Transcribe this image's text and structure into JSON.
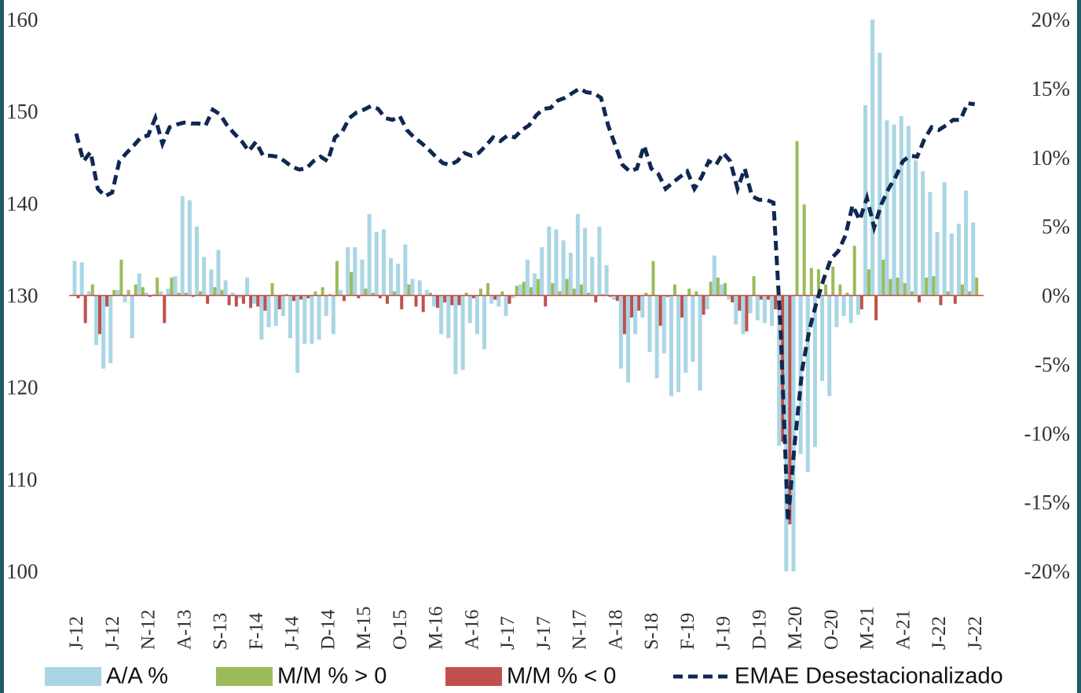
{
  "chart_data": {
    "type": "bar",
    "categories": [
      "J-12",
      null,
      null,
      null,
      null,
      "J-12",
      null,
      null,
      null,
      null,
      "N-12",
      null,
      null,
      null,
      null,
      "A-13",
      null,
      null,
      null,
      null,
      "S-13",
      null,
      null,
      null,
      null,
      "F-14",
      null,
      null,
      null,
      null,
      "J-14",
      null,
      null,
      null,
      null,
      "D-14",
      null,
      null,
      null,
      null,
      "M-15",
      null,
      null,
      null,
      null,
      "O-15",
      null,
      null,
      null,
      null,
      "M-16",
      null,
      null,
      null,
      null,
      "A-16",
      null,
      null,
      null,
      null,
      "J-17",
      null,
      null,
      null,
      null,
      "J-17",
      null,
      null,
      null,
      null,
      "N-17",
      null,
      null,
      null,
      null,
      "A-18",
      null,
      null,
      null,
      null,
      "S-18",
      null,
      null,
      null,
      null,
      "F-19",
      null,
      null,
      null,
      null,
      "J-19",
      null,
      null,
      null,
      null,
      "D-19",
      null,
      null,
      null,
      null,
      "M-20",
      null,
      null,
      null,
      null,
      "O-20",
      null,
      null,
      null,
      null,
      "M-21",
      null,
      null,
      null,
      null,
      "A-21",
      null,
      null,
      null,
      null,
      "J-22",
      null,
      null,
      null,
      null,
      "J-22"
    ],
    "series": [
      {
        "name": "A/A %",
        "color": "#a9d6e5",
        "axis": "y2",
        "values": [
          2.5,
          2.4,
          0.3,
          -3.6,
          -5.3,
          -4.9,
          0.4,
          -0.5,
          -3.1,
          1.6,
          0.2,
          0.1,
          0.3,
          0.5,
          1.4,
          7.2,
          6.9,
          5.0,
          2.8,
          1.9,
          3.3,
          1.1,
          0.2,
          -0.2,
          1.3,
          -0.6,
          -3.2,
          -2.3,
          -2.2,
          -1.5,
          -3.1,
          -5.6,
          -3.5,
          -3.5,
          -3.2,
          -1.5,
          -2.8,
          0.4,
          3.5,
          3.5,
          2.6,
          5.9,
          4.6,
          4.8,
          2.7,
          2.3,
          3.7,
          1.2,
          1.1,
          0.4,
          -0.8,
          -2.8,
          -3.1,
          -5.7,
          -5.4,
          -2.0,
          -2.8,
          -3.9,
          -0.6,
          -0.8,
          -1.5,
          -0.2,
          0.8,
          2.6,
          1.6,
          3.5,
          5.0,
          4.8,
          4.0,
          3.1,
          5.9,
          4.9,
          2.8,
          5.0,
          2.2,
          -0.3,
          -5.3,
          -6.3,
          -2.8,
          -1.6,
          -4.1,
          -6.0,
          -4.2,
          -7.3,
          -7.0,
          -5.6,
          -4.8,
          -6.9,
          -1.0,
          2.9,
          0.8,
          -0.3,
          -2.1,
          -2.8,
          -1.3,
          -1.8,
          -2.0,
          -2.2,
          -10.9,
          -20,
          -20,
          -11.5,
          -12.8,
          -11.0,
          -6.2,
          -7.3,
          -2.3,
          -1.5,
          -2.0,
          -1.4,
          13.8,
          20,
          17.6,
          12.7,
          12.4,
          13.0,
          12.3,
          9.8,
          9.0,
          7.5,
          4.6,
          8.2,
          4.5,
          5.2,
          7.6,
          5.3
        ]
      },
      {
        "name": "M/M % > 0",
        "color": "#9bbb59",
        "axis": "y2",
        "values": [
          null,
          null,
          0.8,
          null,
          null,
          0.4,
          2.6,
          0.4,
          0.8,
          0.6,
          null,
          1.3,
          null,
          1.3,
          0.2,
          0.2,
          null,
          0.3,
          null,
          0.6,
          0.4,
          null,
          null,
          null,
          null,
          null,
          null,
          0.9,
          null,
          0.1,
          null,
          null,
          null,
          0.3,
          0.6,
          0.1,
          2.5,
          null,
          1.7,
          null,
          0.5,
          0.2,
          null,
          null,
          0.3,
          null,
          0.8,
          null,
          null,
          0.2,
          null,
          null,
          null,
          null,
          0.2,
          null,
          0.5,
          0.9,
          null,
          0.3,
          null,
          0.7,
          1.0,
          0.6,
          1.2,
          null,
          0.9,
          0.3,
          1.2,
          0.5,
          0.8,
          0.2,
          null,
          0.1,
          null,
          null,
          null,
          null,
          null,
          0.2,
          2.5,
          null,
          null,
          0.8,
          null,
          0.5,
          0.3,
          null,
          1.0,
          1.3,
          0.9,
          null,
          null,
          null,
          1.4,
          null,
          null,
          null,
          null,
          null,
          11.2,
          6.6,
          2.0,
          1.9,
          0.8,
          2.1,
          0.8,
          0.2,
          3.6,
          null,
          1.9,
          null,
          2.6,
          1.2,
          1.3,
          0.9,
          0.3,
          null,
          1.3,
          1.4,
          null,
          0.3,
          null,
          0.8,
          0.3,
          1.3
        ]
      },
      {
        "name": "M/M % < 0",
        "color": "#c0504d",
        "axis": "y2",
        "values": [
          -0.2,
          -2.0,
          null,
          -2.8,
          -0.8,
          null,
          null,
          null,
          null,
          null,
          -0.1,
          null,
          -2.0,
          null,
          null,
          null,
          -0.1,
          null,
          -0.6,
          null,
          null,
          -0.7,
          -0.8,
          -0.6,
          -0.9,
          -0.8,
          -1.1,
          null,
          -1.0,
          null,
          -0.4,
          -0.3,
          -0.2,
          null,
          null,
          null,
          null,
          -0.4,
          null,
          -0.2,
          null,
          null,
          -0.2,
          -0.6,
          null,
          -1.0,
          null,
          -0.8,
          -1.2,
          null,
          -0.9,
          -0.5,
          -0.7,
          -0.7,
          null,
          -0.2,
          null,
          null,
          -0.3,
          null,
          -0.6,
          null,
          null,
          null,
          null,
          -0.8,
          null,
          null,
          null,
          null,
          null,
          null,
          -0.5,
          null,
          -0.1,
          -0.4,
          -2.8,
          -1.6,
          -1.1,
          null,
          null,
          -2.2,
          -0.1,
          null,
          -1.6,
          null,
          null,
          -1.4,
          null,
          null,
          null,
          -0.5,
          -1.1,
          -2.6,
          null,
          -0.3,
          -0.3,
          -1.0,
          -10.6,
          -16.6,
          null,
          null,
          null,
          null,
          null,
          null,
          null,
          null,
          null,
          -1.0,
          null,
          -1.8,
          null,
          null,
          null,
          null,
          null,
          -0.5,
          null,
          null,
          -0.7,
          null,
          -0.6,
          null,
          null,
          null
        ]
      },
      {
        "name": "EMAE Desestacionalizado",
        "color": "#0f2852",
        "type": "line",
        "line_style": "dashed",
        "values": [
          147.6,
          144.6,
          145.6,
          141.6,
          140.8,
          141.2,
          144.6,
          145.5,
          146.3,
          147.2,
          147.4,
          149.3,
          146.5,
          148.3,
          148.6,
          148.8,
          148.7,
          148.7,
          148.5,
          150.2,
          149.7,
          148.5,
          147.6,
          146.8,
          145.7,
          146.7,
          145.2,
          145.2,
          145.1,
          144.6,
          144.0,
          143.7,
          143.8,
          144.6,
          145.1,
          144.6,
          147.2,
          147.8,
          149.3,
          149.9,
          150.2,
          150.6,
          150.3,
          149.3,
          149.1,
          149.5,
          148.0,
          147.2,
          146.6,
          145.9,
          145.1,
          144.4,
          144.2,
          144.6,
          145.5,
          145.2,
          145.5,
          146.3,
          147.2,
          146.8,
          147.4,
          147.2,
          148.0,
          148.5,
          149.6,
          150.3,
          150.4,
          151.2,
          151.5,
          152.0,
          152.5,
          152.1,
          152.0,
          151.5,
          148.5,
          146.3,
          144.2,
          143.5,
          143.8,
          146.3,
          143.8,
          143.2,
          141.6,
          142.3,
          142.9,
          143.5,
          141.6,
          142.9,
          144.6,
          144.2,
          145.5,
          144.6,
          141.6,
          143.8,
          140.8,
          140.4,
          140.4,
          140.1,
          126.3,
          105.4,
          114.3,
          122.0,
          126.3,
          129.3,
          131.8,
          134.0,
          134.8,
          136.5,
          139.8,
          138.2,
          140.6,
          137.4,
          139.9,
          141.6,
          142.9,
          144.6,
          145.2,
          145.1,
          147.0,
          148.3,
          148.0,
          148.5,
          149.1,
          149.1,
          150.9,
          150.8
        ]
      }
    ],
    "ylim": [
      100,
      160
    ],
    "yticks": [
      100,
      110,
      120,
      130,
      140,
      150,
      160
    ],
    "y2lim": [
      -20,
      20
    ],
    "y2ticks": [
      {
        "value": -20,
        "label": "-20%"
      },
      {
        "value": -15,
        "label": "-15%"
      },
      {
        "value": -10,
        "label": "-10%"
      },
      {
        "value": -5,
        "label": "-5%"
      },
      {
        "value": 0,
        "label": "0%"
      },
      {
        "value": 5,
        "label": "5%"
      },
      {
        "value": 10,
        "label": "10%"
      },
      {
        "value": 15,
        "label": "15%"
      },
      {
        "value": 20,
        "label": "20%"
      }
    ],
    "zero_line_color": "#c0504d",
    "legend": "bottom"
  }
}
